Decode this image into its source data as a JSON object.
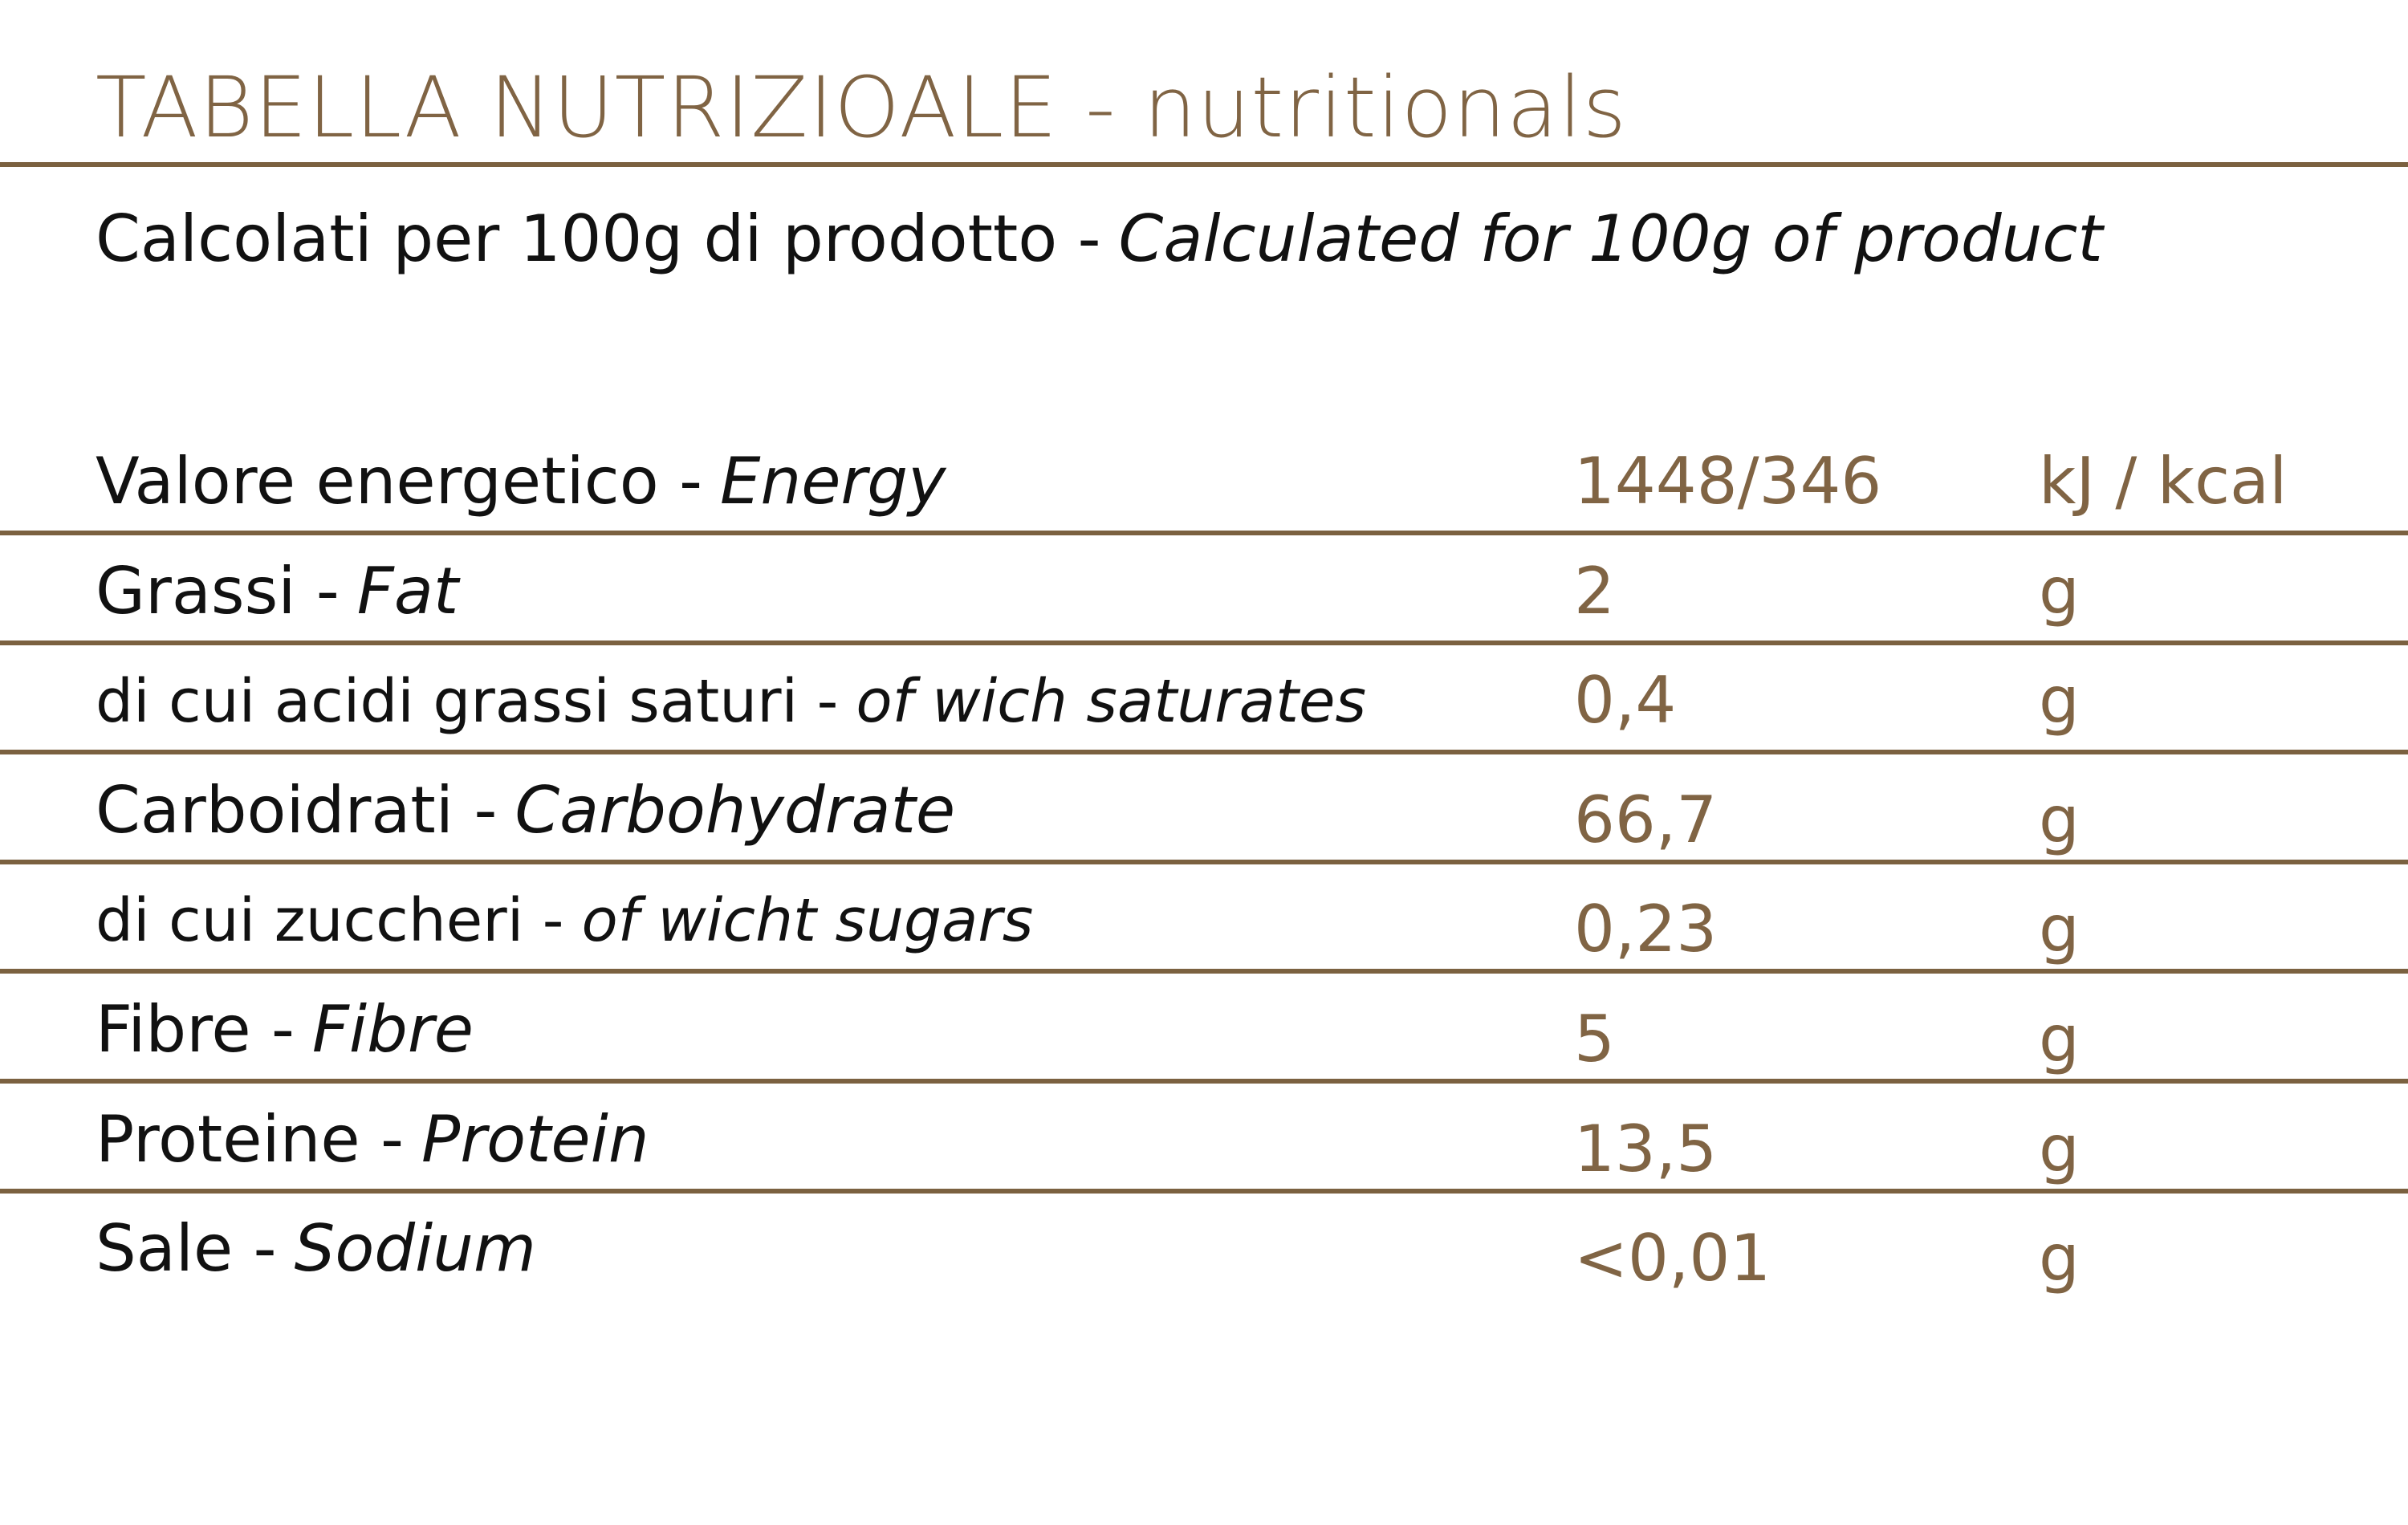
{
  "header": {
    "title": "TABELLA NUTRIZIOALE - nutritionals",
    "subtitle": {
      "text": "Calcolati per 100g di prodotto -",
      "italic": "Calculated for 100g of product"
    }
  },
  "table": {
    "rows": [
      {
        "label": "Valore energetico -",
        "label_en": "Energy",
        "value": "1448/346",
        "unit": "kJ / kcal"
      },
      {
        "label": "Grassi -",
        "label_en": "Fat",
        "value": "2",
        "unit": "g"
      },
      {
        "label": "di cui acidi grassi saturi -",
        "label_en": "of wich saturates",
        "value": "0,4",
        "unit": "g"
      },
      {
        "label": "Carboidrati -",
        "label_en": "Carbohydrate",
        "value": "66,7",
        "unit": "g"
      },
      {
        "label": "di cui zuccheri -",
        "label_en": "of wicht sugars",
        "value": "0,23",
        "unit": "g"
      },
      {
        "label": "Fibre -",
        "label_en": "Fibre",
        "value": "5",
        "unit": "g"
      },
      {
        "label": "Proteine -",
        "label_en": "Protein",
        "value": "13,5",
        "unit": "g"
      },
      {
        "label": "Sale -",
        "label_en": "Sodium",
        "value": "<0,01",
        "unit": "g"
      }
    ]
  }
}
